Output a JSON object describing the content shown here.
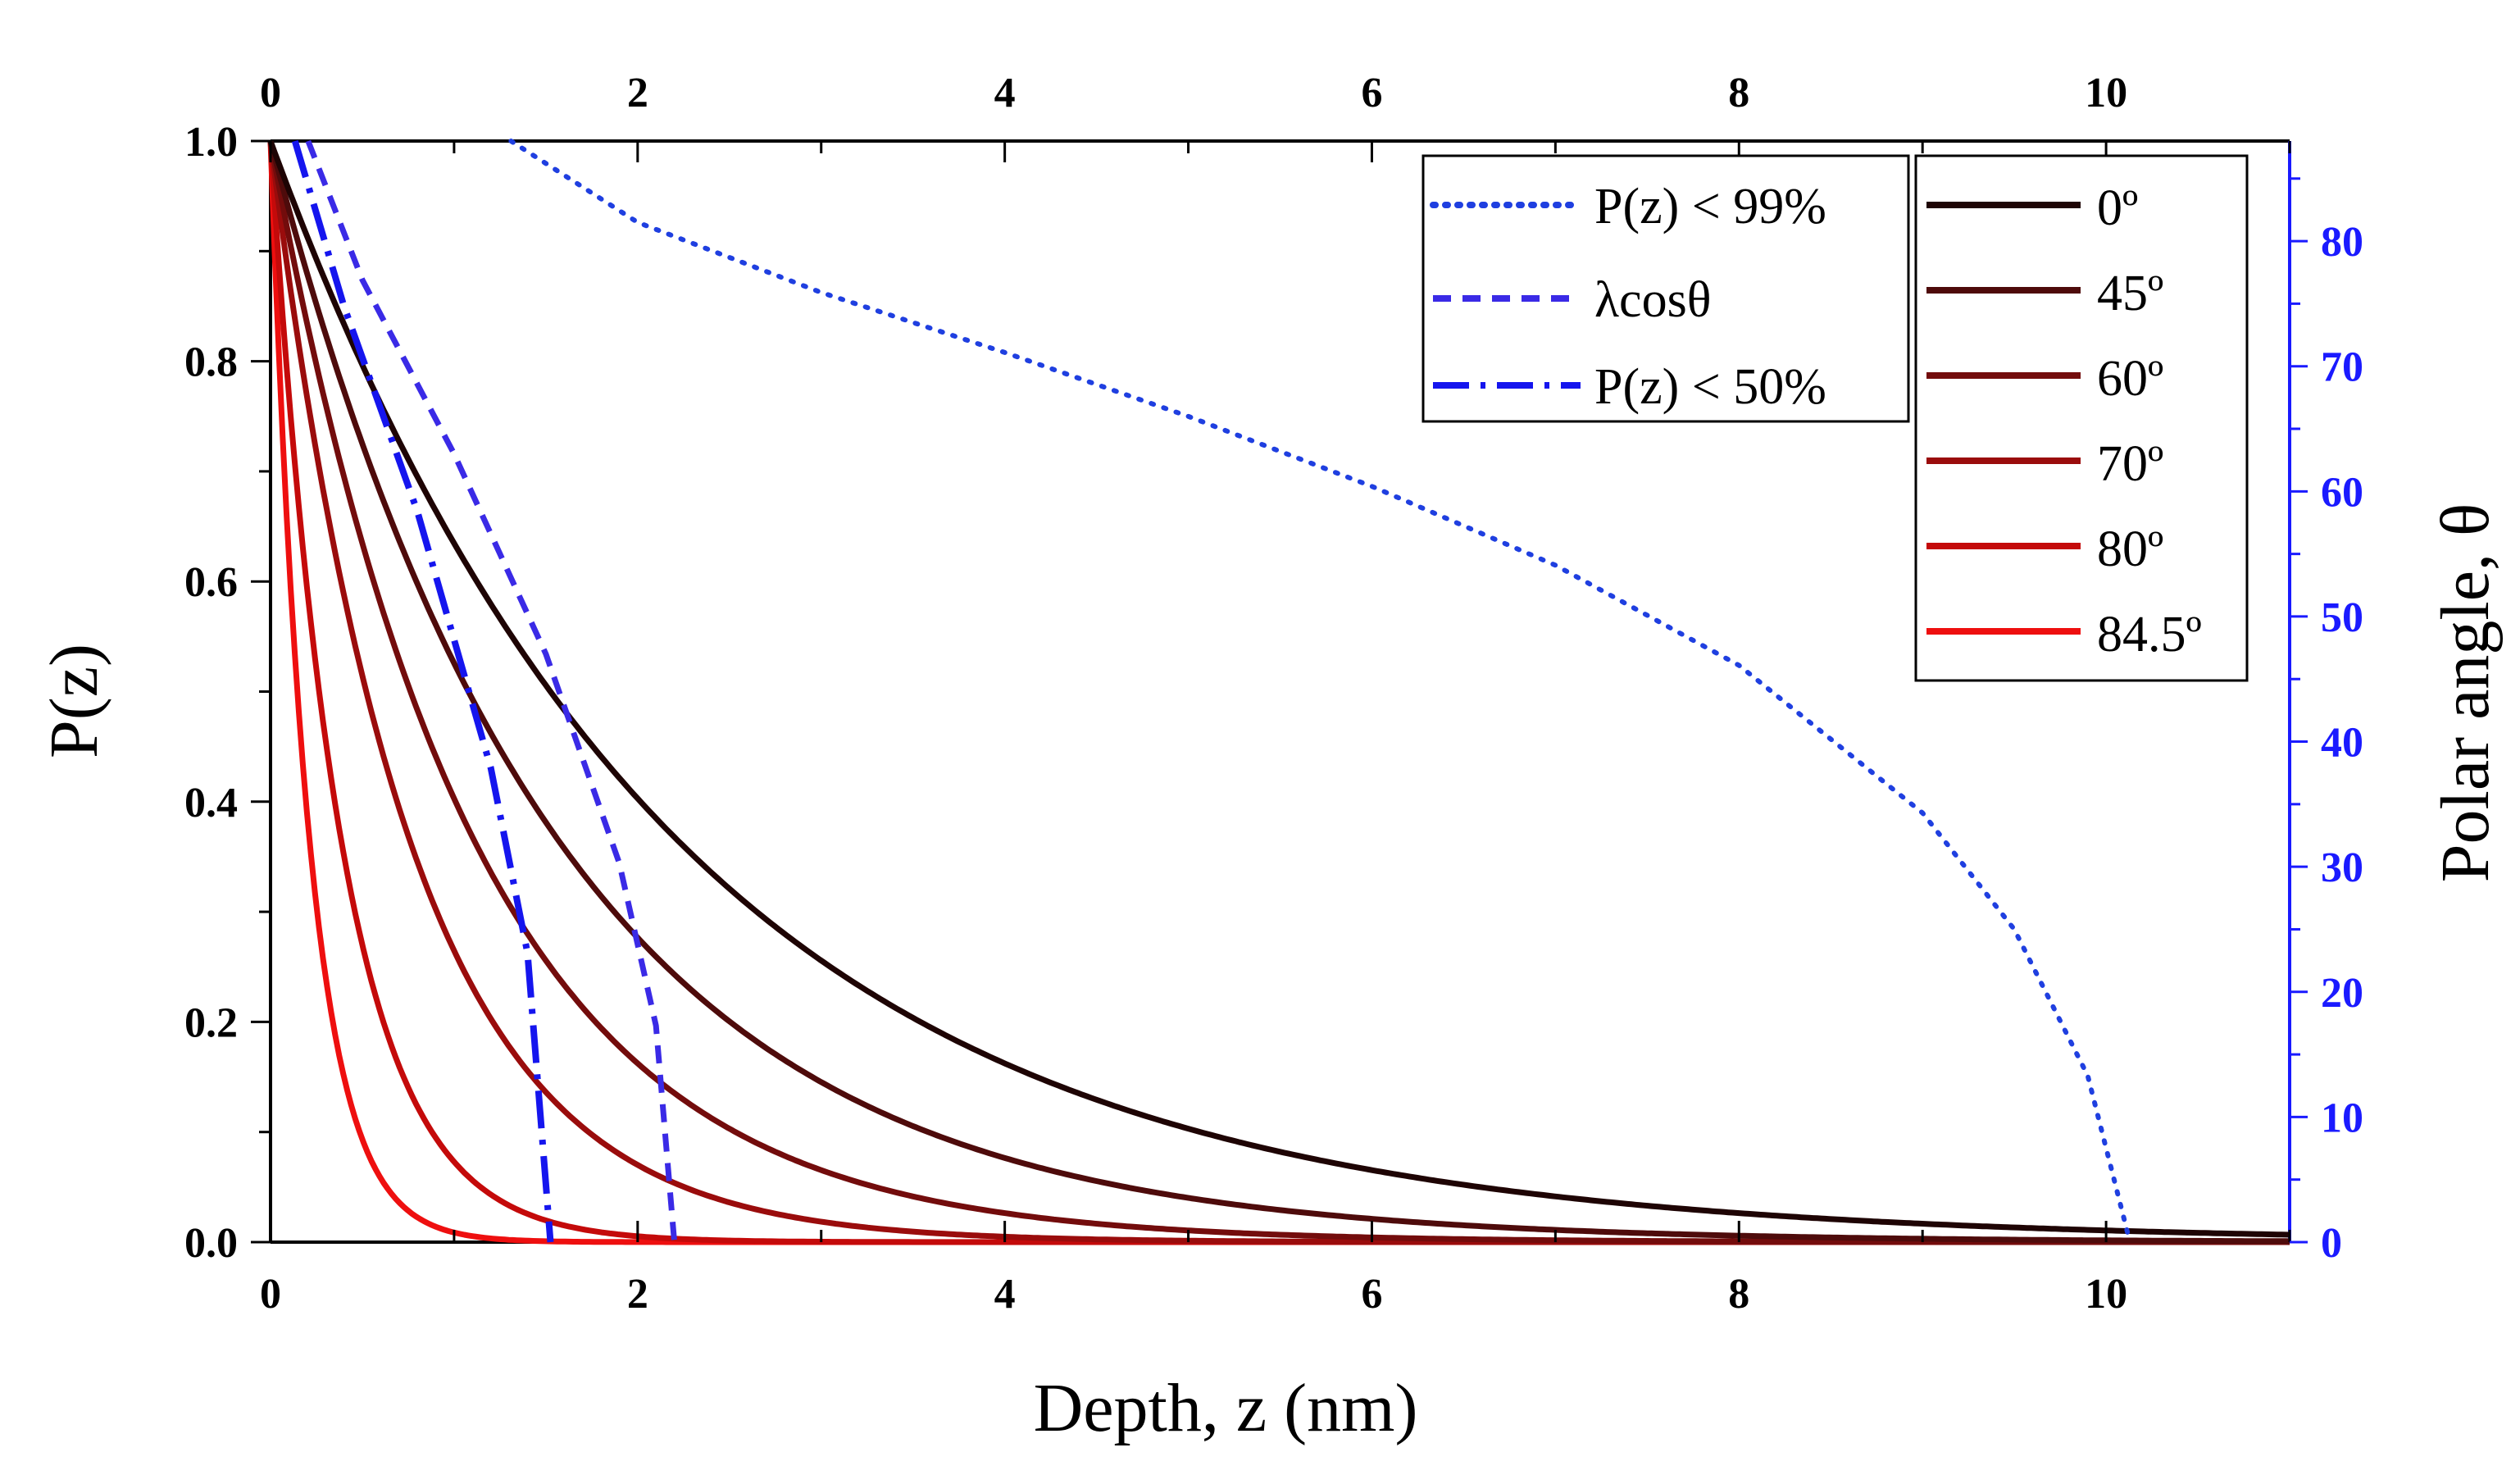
{
  "chart_data": {
    "type": "line",
    "xlabel": "Depth, z (nm)",
    "ylabel": "P(z)",
    "y2label": "Polar angle, θ",
    "xlim": [
      0,
      11
    ],
    "ylim": [
      0,
      1
    ],
    "y2lim": [
      0,
      88
    ],
    "x_ticks": [
      0,
      2,
      4,
      6,
      8,
      10
    ],
    "x_tick_labels": [
      "0",
      "2",
      "4",
      "6",
      "8",
      "10"
    ],
    "y_ticks": [
      0,
      0.2,
      0.4,
      0.6,
      0.8,
      1.0
    ],
    "y_tick_labels": [
      "0.0",
      "0.2",
      "0.4",
      "0.6",
      "0.8",
      "1.0"
    ],
    "y2_ticks": [
      0,
      10,
      20,
      30,
      40,
      50,
      60,
      70,
      80
    ],
    "y2_tick_labels": [
      "0",
      "10",
      "20",
      "30",
      "40",
      "50",
      "60",
      "70",
      "80"
    ],
    "inelastic_mean_free_path_nm": 2.2,
    "colors": {
      "axis": "#000000",
      "right_axis": "#1a1aff",
      "blue_dotted": "#1f3fe0",
      "blue_dashed": "#3a2ae6",
      "blue_dashdot": "#1515ee"
    },
    "series": [
      {
        "name": "0º",
        "theta_deg": 0,
        "color": "#1e0404"
      },
      {
        "name": "45º",
        "theta_deg": 45,
        "color": "#4e0b0b"
      },
      {
        "name": "60º",
        "theta_deg": 60,
        "color": "#730c0c"
      },
      {
        "name": "70º",
        "theta_deg": 70,
        "color": "#9a0c0c"
      },
      {
        "name": "80º",
        "theta_deg": 80,
        "color": "#c40a0a"
      },
      {
        "name": "84.5º",
        "theta_deg": 84.5,
        "color": "#ee0f0f"
      }
    ],
    "angle_series": [
      {
        "name": "P(z) < 99%",
        "style": "dotted",
        "axis": "right",
        "points": [
          [
            1.31,
            88
          ],
          [
            2,
            81.5
          ],
          [
            3,
            75.9
          ],
          [
            4,
            71.1
          ],
          [
            5,
            66
          ],
          [
            6,
            60.4
          ],
          [
            7,
            54.1
          ],
          [
            8,
            46.1
          ],
          [
            9,
            34.3
          ],
          [
            9.5,
            25
          ],
          [
            9.9,
            13.3
          ],
          [
            10.13,
            0
          ]
        ]
      },
      {
        "name": "λcosθ",
        "style": "dashed",
        "axis": "right",
        "points": [
          [
            0.205,
            88
          ],
          [
            0.5,
            76.9
          ],
          [
            1.0,
            63.0
          ],
          [
            1.5,
            47.0
          ],
          [
            1.9,
            30.3
          ],
          [
            2.1,
            17.3
          ],
          [
            2.2,
            0
          ]
        ]
      },
      {
        "name": "P(z) < 50%",
        "style": "dashdot",
        "axis": "right",
        "points": [
          [
            0.133,
            88
          ],
          [
            0.4,
            74.8
          ],
          [
            0.8,
            58.4
          ],
          [
            1.2,
            37.9
          ],
          [
            1.4,
            23.1
          ],
          [
            1.525,
            0
          ]
        ]
      }
    ]
  }
}
